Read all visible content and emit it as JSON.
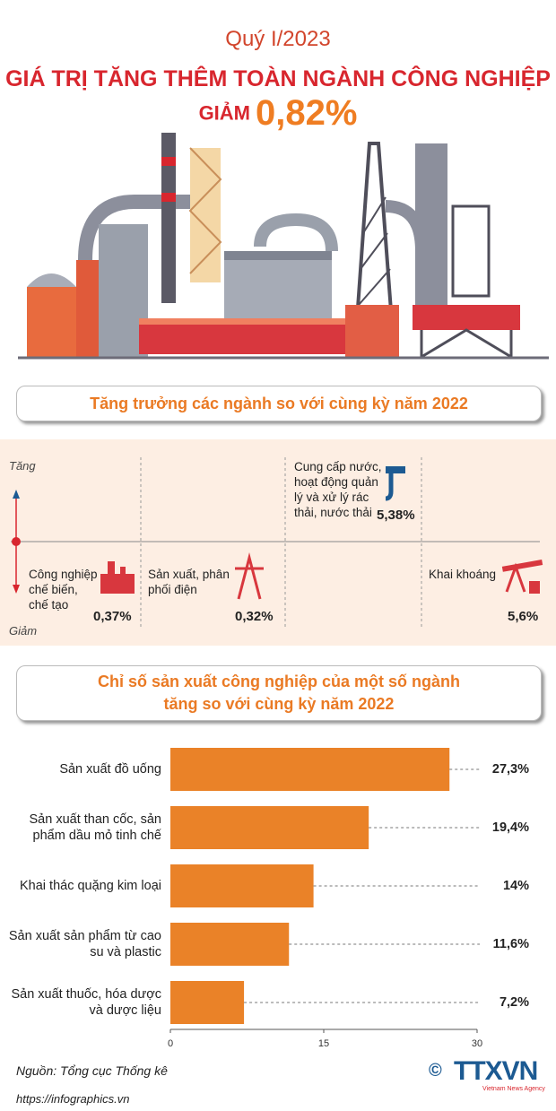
{
  "header": {
    "period": "Quý I/2023",
    "title": "GIÁ TRỊ TĂNG THÊM TOÀN NGÀNH CÔNG NGHIỆP",
    "decrease_label": "GIẢM",
    "decrease_value": "0,82%"
  },
  "growth": {
    "heading": "Tăng trưởng các ngành so với cùng kỳ năm 2022",
    "up_label": "Tăng",
    "down_label": "Giảm",
    "sectors": [
      {
        "name": "Công nghiệp chế biến, chế tạo",
        "value": "0,37%"
      },
      {
        "name": "Sản xuất, phân phối điện",
        "value": "0,32%"
      },
      {
        "name": "Cung cấp nước, hoạt động quản lý và xử lý rác thải, nước thải",
        "value": "5,38%"
      },
      {
        "name": "Khai khoáng",
        "value": "5,6%"
      }
    ]
  },
  "chart_data": {
    "type": "bar",
    "title": "Chỉ số sản xuất công nghiệp của một số ngành tăng so với cùng kỳ năm 2022",
    "categories": [
      "Sản xuất đồ uống",
      "Sản xuất than cốc, sản phẩm dầu mỏ tinh chế",
      "Khai thác quặng kim loại",
      "Sản xuất sản phẩm từ cao su và plastic",
      "Sản xuất thuốc, hóa dược và dược liệu"
    ],
    "values": [
      27.3,
      19.4,
      14,
      11.6,
      7.2
    ],
    "value_labels": [
      "27,3%",
      "19,4%",
      "14%",
      "11,6%",
      "7,2%"
    ],
    "color": "#ea8228",
    "xlim": [
      0,
      30
    ],
    "xticks": [
      0,
      15,
      30
    ]
  },
  "footer": {
    "source": "Nguồn: Tổng cục Thống kê",
    "url": "https://infographics.vn",
    "copyright": "©",
    "logo": "TTXVN",
    "logo_subtitle": "Vietnam News Agency"
  }
}
